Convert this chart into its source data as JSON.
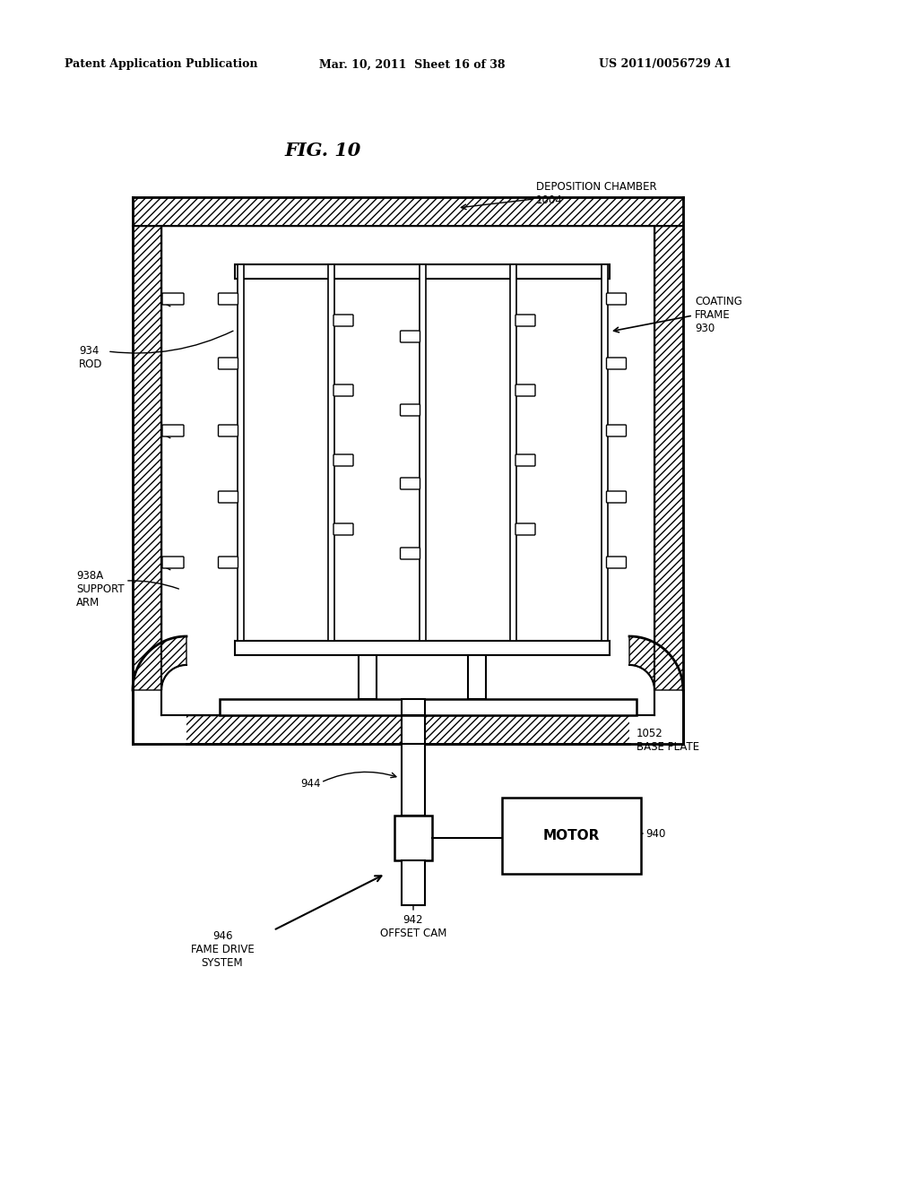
{
  "bg_color": "#ffffff",
  "header_left": "Patent Application Publication",
  "header_mid": "Mar. 10, 2011  Sheet 16 of 38",
  "header_right": "US 2011/0056729 A1",
  "fig_title": "FIG. 10",
  "label_dep_chamber": "DEPOSITION CHAMBER\n1004",
  "label_coating_frame": "COATING\nFRAME\n930",
  "label_rod": "934\nROD",
  "label_support_arm": "938A\nSUPPORT\nARM",
  "label_base_plate": "1052\nBASE PLATE",
  "label_motor": "MOTOR",
  "label_motor_num": "940",
  "label_offset_cam": "942\nOFFSET CAM",
  "label_shaft_num": "944",
  "label_frame_drive": "946\nFAME DRIVE\nSYSTEM"
}
